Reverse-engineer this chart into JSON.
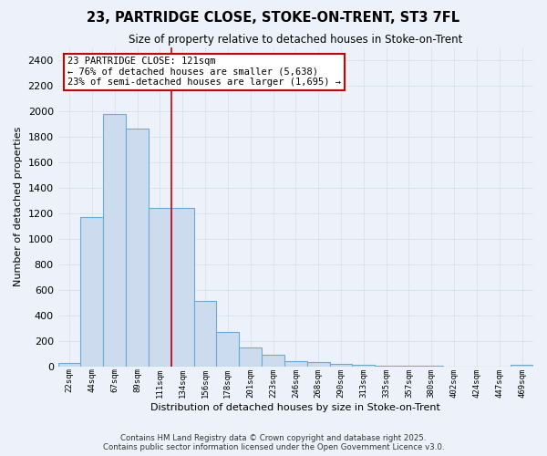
{
  "title_line1": "23, PARTRIDGE CLOSE, STOKE-ON-TRENT, ST3 7FL",
  "title_line2": "Size of property relative to detached houses in Stoke-on-Trent",
  "xlabel": "Distribution of detached houses by size in Stoke-on-Trent",
  "ylabel": "Number of detached properties",
  "bin_labels": [
    "22sqm",
    "44sqm",
    "67sqm",
    "89sqm",
    "111sqm",
    "134sqm",
    "156sqm",
    "178sqm",
    "201sqm",
    "223sqm",
    "246sqm",
    "268sqm",
    "290sqm",
    "313sqm",
    "335sqm",
    "357sqm",
    "380sqm",
    "402sqm",
    "424sqm",
    "447sqm",
    "469sqm"
  ],
  "bar_values": [
    25,
    1170,
    1980,
    1860,
    1240,
    1240,
    510,
    270,
    150,
    90,
    45,
    38,
    20,
    14,
    8,
    5,
    3,
    2,
    2,
    1,
    15
  ],
  "bar_color": "#ccdcee",
  "bar_edgecolor": "#6aaad4",
  "background_color": "#edf2fa",
  "grid_color": "#d8e4f0",
  "annotation_text": "23 PARTRIDGE CLOSE: 121sqm\n← 76% of detached houses are smaller (5,638)\n23% of semi-detached houses are larger (1,695) →",
  "annotation_box_color": "#ffffff",
  "annotation_box_edgecolor": "#cc0000",
  "redline_bin_index": 4,
  "ylim": [
    0,
    2500
  ],
  "yticks": [
    0,
    200,
    400,
    600,
    800,
    1000,
    1200,
    1400,
    1600,
    1800,
    2000,
    2200,
    2400
  ],
  "footer_text": "Contains HM Land Registry data © Crown copyright and database right 2025.\nContains public sector information licensed under the Open Government Licence v3.0.",
  "figsize": [
    6.0,
    5.0
  ],
  "dpi": 100
}
